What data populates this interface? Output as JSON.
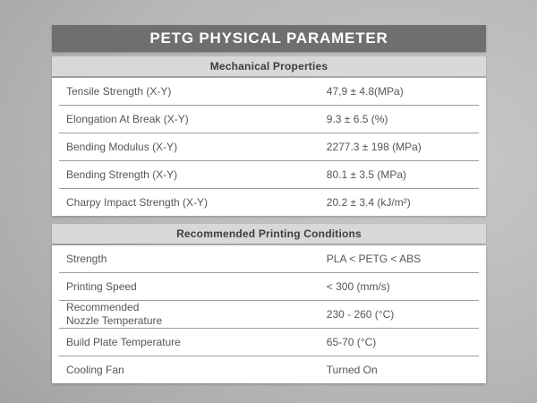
{
  "title": "PETG PHYSICAL PARAMETER",
  "sections": [
    {
      "header": "Mechanical Properties",
      "rows": [
        {
          "label": "Tensile Strength (X-Y)",
          "value": "47,9 ± 4.8(MPa)"
        },
        {
          "label": "Elongation At Break (X-Y)",
          "value": "9.3 ± 6.5 (%)"
        },
        {
          "label": "Bending Modulus (X-Y)",
          "value": "2277.3 ± 198 (MPa)"
        },
        {
          "label": "Bending Strength (X-Y)",
          "value": "80.1 ± 3.5 (MPa)"
        },
        {
          "label": "Charpy Impact Strength (X-Y)",
          "value": "20.2 ± 3.4 (kJ/m²)"
        }
      ]
    },
    {
      "header": "Recommended Printing Conditions",
      "rows": [
        {
          "label": "Strength",
          "value": "PLA < PETG < ABS"
        },
        {
          "label": "Printing Speed",
          "value": "< 300 (mm/s)"
        },
        {
          "label": "Recommended\nNozzle Temperature",
          "value": "230 - 260 (°C)"
        },
        {
          "label": "Build Plate Temperature",
          "value": "65-70 (°C)"
        },
        {
          "label": "Cooling Fan",
          "value": "Turned On"
        }
      ]
    }
  ],
  "colors": {
    "title_bar_bg": "#6f6f6f",
    "title_text": "#ffffff",
    "section_header_bg": "#d8d8d8",
    "section_header_text": "#3d3d3d",
    "table_bg": "#ffffff",
    "row_text": "#565656",
    "divider": "#9d9d9d"
  }
}
